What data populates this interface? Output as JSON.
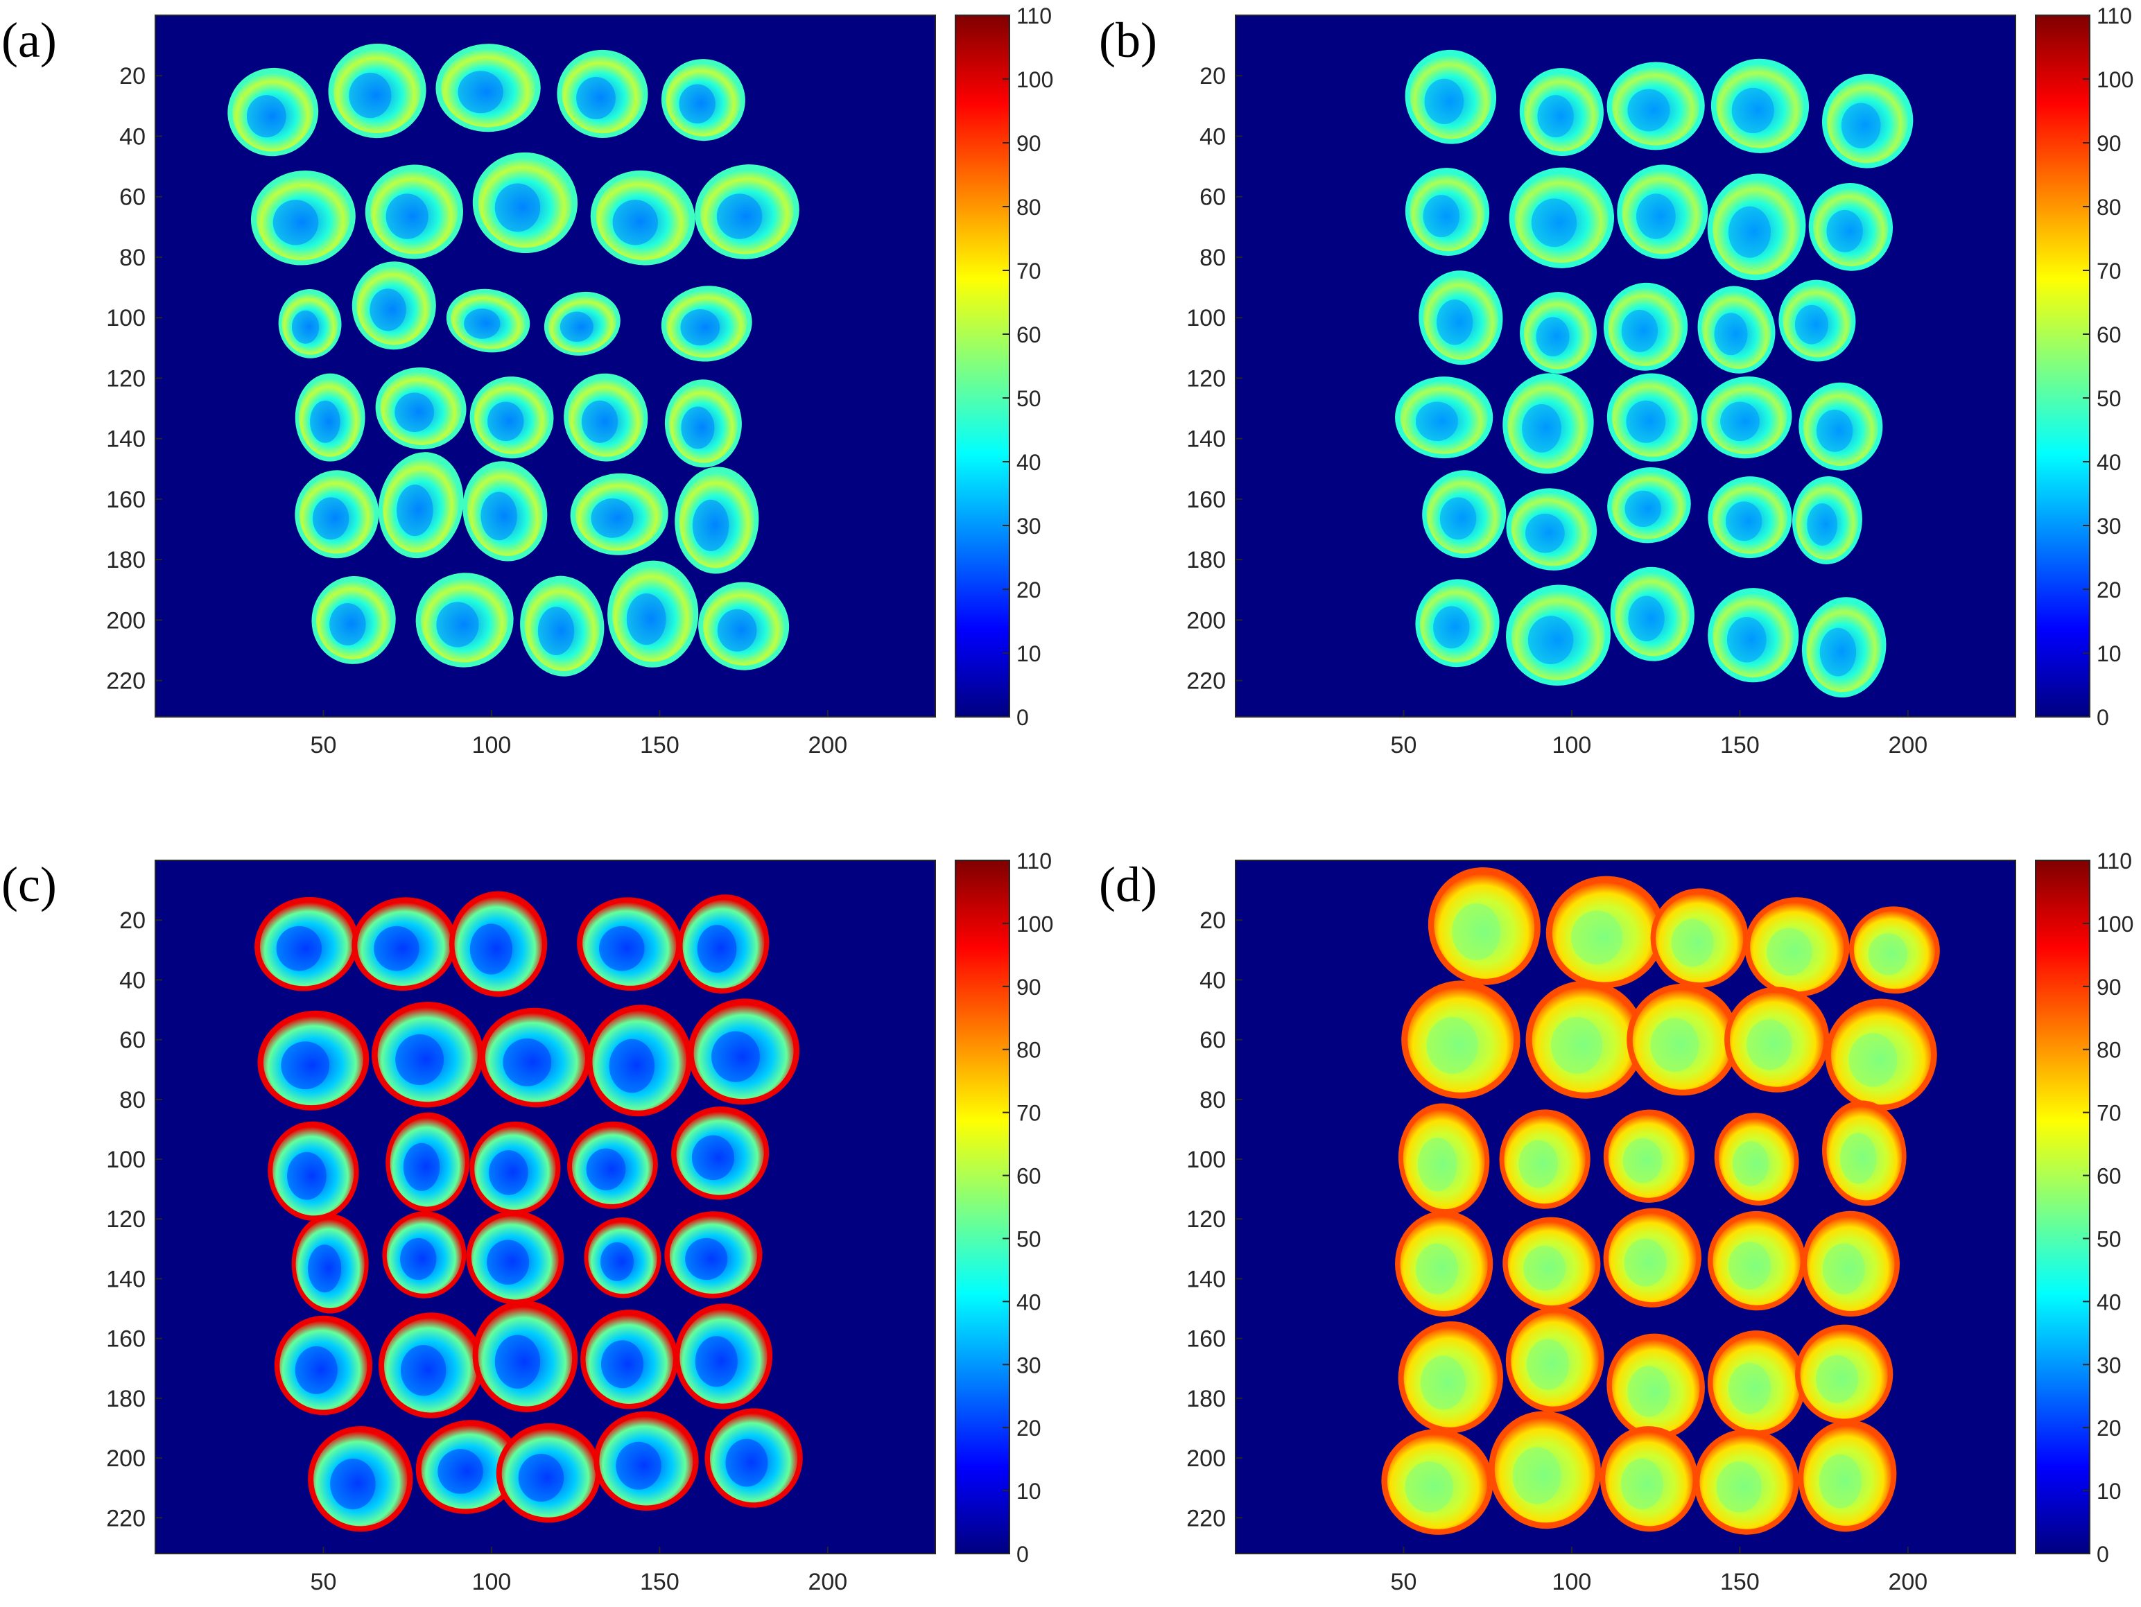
{
  "colors": {
    "background_fill": "#000080",
    "axis_color": "#262626",
    "page_background": "#ffffff",
    "colormap": "jet"
  },
  "chart_data": [
    {
      "type": "heatmap",
      "panel_label": "(a)",
      "colormap": "jet",
      "clim": [
        0,
        110
      ],
      "colorbar_ticks": [
        0,
        10,
        20,
        30,
        40,
        50,
        60,
        70,
        80,
        90,
        100,
        110
      ],
      "xlim": [
        0,
        232
      ],
      "ylim": [
        0,
        232
      ],
      "x_ticks": [
        50,
        100,
        150,
        200
      ],
      "y_ticks": [
        20,
        40,
        60,
        80,
        100,
        120,
        140,
        160,
        180,
        200,
        220
      ],
      "background_value": 0,
      "value_profile": {
        "center": 28,
        "edge": 48,
        "highlight": 62
      },
      "grid": false,
      "kernels": [
        {
          "x": 35,
          "y": 32,
          "rx": 13,
          "ry": 14
        },
        {
          "x": 66,
          "y": 25,
          "rx": 14,
          "ry": 15
        },
        {
          "x": 99,
          "y": 24,
          "rx": 15,
          "ry": 14
        },
        {
          "x": 133,
          "y": 26,
          "rx": 13,
          "ry": 14
        },
        {
          "x": 163,
          "y": 28,
          "rx": 12,
          "ry": 13
        },
        {
          "x": 44,
          "y": 67,
          "rx": 15,
          "ry": 15
        },
        {
          "x": 77,
          "y": 65,
          "rx": 14,
          "ry": 15
        },
        {
          "x": 110,
          "y": 62,
          "rx": 15,
          "ry": 16
        },
        {
          "x": 145,
          "y": 67,
          "rx": 15,
          "ry": 15
        },
        {
          "x": 176,
          "y": 65,
          "rx": 15,
          "ry": 15
        },
        {
          "x": 46,
          "y": 102,
          "rx": 9,
          "ry": 11
        },
        {
          "x": 71,
          "y": 96,
          "rx": 12,
          "ry": 14
        },
        {
          "x": 99,
          "y": 101,
          "rx": 12,
          "ry": 10
        },
        {
          "x": 127,
          "y": 102,
          "rx": 11,
          "ry": 10
        },
        {
          "x": 164,
          "y": 102,
          "rx": 13,
          "ry": 12
        },
        {
          "x": 52,
          "y": 133,
          "rx": 10,
          "ry": 14
        },
        {
          "x": 79,
          "y": 130,
          "rx": 13,
          "ry": 13
        },
        {
          "x": 106,
          "y": 133,
          "rx": 12,
          "ry": 13
        },
        {
          "x": 134,
          "y": 133,
          "rx": 12,
          "ry": 14
        },
        {
          "x": 163,
          "y": 135,
          "rx": 11,
          "ry": 14
        },
        {
          "x": 54,
          "y": 165,
          "rx": 12,
          "ry": 14
        },
        {
          "x": 79,
          "y": 162,
          "rx": 12,
          "ry": 17
        },
        {
          "x": 104,
          "y": 164,
          "rx": 12,
          "ry": 16
        },
        {
          "x": 138,
          "y": 165,
          "rx": 14,
          "ry": 13
        },
        {
          "x": 167,
          "y": 167,
          "rx": 12,
          "ry": 17
        },
        {
          "x": 59,
          "y": 200,
          "rx": 12,
          "ry": 14
        },
        {
          "x": 92,
          "y": 200,
          "rx": 14,
          "ry": 15
        },
        {
          "x": 121,
          "y": 202,
          "rx": 12,
          "ry": 16
        },
        {
          "x": 148,
          "y": 198,
          "rx": 13,
          "ry": 17
        },
        {
          "x": 175,
          "y": 202,
          "rx": 13,
          "ry": 14
        }
      ]
    },
    {
      "type": "heatmap",
      "panel_label": "(b)",
      "colormap": "jet",
      "clim": [
        0,
        110
      ],
      "colorbar_ticks": [
        0,
        10,
        20,
        30,
        40,
        50,
        60,
        70,
        80,
        90,
        100,
        110
      ],
      "xlim": [
        0,
        232
      ],
      "ylim": [
        0,
        232
      ],
      "x_ticks": [
        50,
        100,
        150,
        200
      ],
      "y_ticks": [
        20,
        40,
        60,
        80,
        100,
        120,
        140,
        160,
        180,
        200,
        220
      ],
      "background_value": 0,
      "value_profile": {
        "center": 30,
        "edge": 46,
        "highlight": 60
      },
      "grid": false,
      "kernels": [
        {
          "x": 64,
          "y": 27,
          "rx": 13,
          "ry": 15
        },
        {
          "x": 97,
          "y": 32,
          "rx": 12,
          "ry": 14
        },
        {
          "x": 125,
          "y": 30,
          "rx": 14,
          "ry": 14
        },
        {
          "x": 156,
          "y": 30,
          "rx": 14,
          "ry": 15
        },
        {
          "x": 188,
          "y": 35,
          "rx": 13,
          "ry": 15
        },
        {
          "x": 63,
          "y": 65,
          "rx": 12,
          "ry": 14
        },
        {
          "x": 97,
          "y": 67,
          "rx": 15,
          "ry": 16
        },
        {
          "x": 127,
          "y": 65,
          "rx": 13,
          "ry": 15
        },
        {
          "x": 155,
          "y": 70,
          "rx": 14,
          "ry": 17
        },
        {
          "x": 183,
          "y": 70,
          "rx": 12,
          "ry": 14
        },
        {
          "x": 67,
          "y": 100,
          "rx": 12,
          "ry": 15
        },
        {
          "x": 96,
          "y": 105,
          "rx": 11,
          "ry": 13
        },
        {
          "x": 122,
          "y": 103,
          "rx": 12,
          "ry": 14
        },
        {
          "x": 149,
          "y": 104,
          "rx": 11,
          "ry": 14
        },
        {
          "x": 173,
          "y": 101,
          "rx": 11,
          "ry": 13
        },
        {
          "x": 62,
          "y": 133,
          "rx": 14,
          "ry": 13
        },
        {
          "x": 93,
          "y": 135,
          "rx": 13,
          "ry": 16
        },
        {
          "x": 124,
          "y": 133,
          "rx": 13,
          "ry": 14
        },
        {
          "x": 152,
          "y": 133,
          "rx": 13,
          "ry": 13
        },
        {
          "x": 180,
          "y": 136,
          "rx": 12,
          "ry": 14
        },
        {
          "x": 68,
          "y": 165,
          "rx": 12,
          "ry": 14
        },
        {
          "x": 94,
          "y": 170,
          "rx": 13,
          "ry": 13
        },
        {
          "x": 123,
          "y": 162,
          "rx": 12,
          "ry": 12
        },
        {
          "x": 153,
          "y": 166,
          "rx": 12,
          "ry": 13
        },
        {
          "x": 176,
          "y": 167,
          "rx": 10,
          "ry": 14
        },
        {
          "x": 66,
          "y": 201,
          "rx": 12,
          "ry": 14
        },
        {
          "x": 96,
          "y": 205,
          "rx": 15,
          "ry": 16
        },
        {
          "x": 124,
          "y": 198,
          "rx": 12,
          "ry": 15
        },
        {
          "x": 154,
          "y": 205,
          "rx": 13,
          "ry": 15
        },
        {
          "x": 181,
          "y": 209,
          "rx": 12,
          "ry": 16
        }
      ]
    },
    {
      "type": "heatmap",
      "panel_label": "(c)",
      "colormap": "jet",
      "clim": [
        0,
        110
      ],
      "colorbar_ticks": [
        0,
        10,
        20,
        30,
        40,
        50,
        60,
        70,
        80,
        90,
        100,
        110
      ],
      "xlim": [
        0,
        232
      ],
      "ylim": [
        0,
        232
      ],
      "x_ticks": [
        50,
        100,
        150,
        200
      ],
      "y_ticks": [
        20,
        40,
        60,
        80,
        100,
        120,
        140,
        160,
        180,
        200,
        220
      ],
      "background_value": 0,
      "value_profile": {
        "center": 20,
        "edge": 98,
        "highlight": 52
      },
      "grid": false,
      "kernels": [
        {
          "x": 45,
          "y": 28,
          "rx": 15,
          "ry": 15
        },
        {
          "x": 74,
          "y": 28,
          "rx": 15,
          "ry": 15
        },
        {
          "x": 102,
          "y": 28,
          "rx": 14,
          "ry": 17
        },
        {
          "x": 141,
          "y": 28,
          "rx": 15,
          "ry": 15
        },
        {
          "x": 169,
          "y": 28,
          "rx": 13,
          "ry": 16
        },
        {
          "x": 47,
          "y": 67,
          "rx": 16,
          "ry": 16
        },
        {
          "x": 81,
          "y": 65,
          "rx": 16,
          "ry": 17
        },
        {
          "x": 113,
          "y": 66,
          "rx": 16,
          "ry": 16
        },
        {
          "x": 144,
          "y": 67,
          "rx": 15,
          "ry": 18
        },
        {
          "x": 175,
          "y": 64,
          "rx": 16,
          "ry": 17
        },
        {
          "x": 47,
          "y": 104,
          "rx": 13,
          "ry": 16
        },
        {
          "x": 81,
          "y": 101,
          "rx": 12,
          "ry": 16
        },
        {
          "x": 107,
          "y": 103,
          "rx": 13,
          "ry": 15
        },
        {
          "x": 136,
          "y": 102,
          "rx": 13,
          "ry": 14
        },
        {
          "x": 168,
          "y": 98,
          "rx": 14,
          "ry": 15
        },
        {
          "x": 52,
          "y": 135,
          "rx": 11,
          "ry": 16
        },
        {
          "x": 80,
          "y": 132,
          "rx": 12,
          "ry": 14
        },
        {
          "x": 107,
          "y": 133,
          "rx": 14,
          "ry": 15
        },
        {
          "x": 139,
          "y": 133,
          "rx": 11,
          "ry": 13
        },
        {
          "x": 166,
          "y": 132,
          "rx": 14,
          "ry": 14
        },
        {
          "x": 50,
          "y": 169,
          "rx": 14,
          "ry": 16
        },
        {
          "x": 82,
          "y": 169,
          "rx": 15,
          "ry": 17
        },
        {
          "x": 110,
          "y": 166,
          "rx": 15,
          "ry": 18
        },
        {
          "x": 141,
          "y": 167,
          "rx": 14,
          "ry": 16
        },
        {
          "x": 169,
          "y": 166,
          "rx": 14,
          "ry": 17
        },
        {
          "x": 61,
          "y": 207,
          "rx": 15,
          "ry": 17
        },
        {
          "x": 93,
          "y": 203,
          "rx": 15,
          "ry": 15
        },
        {
          "x": 117,
          "y": 205,
          "rx": 15,
          "ry": 16
        },
        {
          "x": 146,
          "y": 201,
          "rx": 15,
          "ry": 16
        },
        {
          "x": 178,
          "y": 200,
          "rx": 14,
          "ry": 16
        }
      ]
    },
    {
      "type": "heatmap",
      "panel_label": "(d)",
      "colormap": "jet",
      "clim": [
        0,
        110
      ],
      "colorbar_ticks": [
        0,
        10,
        20,
        30,
        40,
        50,
        60,
        70,
        80,
        90,
        100,
        110
      ],
      "xlim": [
        0,
        232
      ],
      "ylim": [
        0,
        232
      ],
      "x_ticks": [
        50,
        100,
        150,
        200
      ],
      "y_ticks": [
        20,
        40,
        60,
        80,
        100,
        120,
        140,
        160,
        180,
        200,
        220
      ],
      "background_value": 0,
      "value_profile": {
        "center": 55,
        "edge": 88,
        "highlight": 72
      },
      "grid": false,
      "kernels": [
        {
          "x": 74,
          "y": 22,
          "rx": 16,
          "ry": 19
        },
        {
          "x": 110,
          "y": 24,
          "rx": 17,
          "ry": 18
        },
        {
          "x": 138,
          "y": 26,
          "rx": 14,
          "ry": 16
        },
        {
          "x": 167,
          "y": 29,
          "rx": 15,
          "ry": 16
        },
        {
          "x": 196,
          "y": 30,
          "rx": 13,
          "ry": 14
        },
        {
          "x": 67,
          "y": 60,
          "rx": 17,
          "ry": 19
        },
        {
          "x": 104,
          "y": 60,
          "rx": 17,
          "ry": 19
        },
        {
          "x": 133,
          "y": 60,
          "rx": 16,
          "ry": 18
        },
        {
          "x": 161,
          "y": 60,
          "rx": 15,
          "ry": 17
        },
        {
          "x": 192,
          "y": 65,
          "rx": 16,
          "ry": 18
        },
        {
          "x": 62,
          "y": 100,
          "rx": 13,
          "ry": 18
        },
        {
          "x": 92,
          "y": 100,
          "rx": 13,
          "ry": 16
        },
        {
          "x": 123,
          "y": 99,
          "rx": 13,
          "ry": 15
        },
        {
          "x": 155,
          "y": 100,
          "rx": 12,
          "ry": 15
        },
        {
          "x": 187,
          "y": 98,
          "rx": 12,
          "ry": 17
        },
        {
          "x": 62,
          "y": 135,
          "rx": 14,
          "ry": 17
        },
        {
          "x": 94,
          "y": 135,
          "rx": 14,
          "ry": 15
        },
        {
          "x": 124,
          "y": 133,
          "rx": 14,
          "ry": 16
        },
        {
          "x": 155,
          "y": 134,
          "rx": 14,
          "ry": 16
        },
        {
          "x": 183,
          "y": 135,
          "rx": 14,
          "ry": 17
        },
        {
          "x": 64,
          "y": 173,
          "rx": 15,
          "ry": 18
        },
        {
          "x": 95,
          "y": 167,
          "rx": 14,
          "ry": 17
        },
        {
          "x": 125,
          "y": 176,
          "rx": 14,
          "ry": 17
        },
        {
          "x": 155,
          "y": 175,
          "rx": 14,
          "ry": 17
        },
        {
          "x": 181,
          "y": 172,
          "rx": 14,
          "ry": 16
        },
        {
          "x": 60,
          "y": 208,
          "rx": 16,
          "ry": 17
        },
        {
          "x": 92,
          "y": 204,
          "rx": 16,
          "ry": 19
        },
        {
          "x": 123,
          "y": 207,
          "rx": 14,
          "ry": 17
        },
        {
          "x": 152,
          "y": 208,
          "rx": 15,
          "ry": 17
        },
        {
          "x": 182,
          "y": 206,
          "rx": 14,
          "ry": 18
        }
      ]
    }
  ]
}
